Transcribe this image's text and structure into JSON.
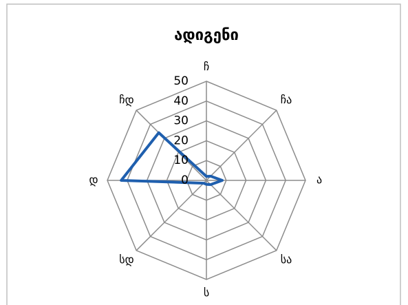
{
  "chart_data": {
    "type": "radar",
    "title": "ადიგენი",
    "categories": [
      "ჩ",
      "ჩა",
      "ა",
      "სა",
      "ს",
      "სდ",
      "დ",
      "ჩდ"
    ],
    "series": [
      {
        "name": "ადიგენი",
        "color": "#1f5fae",
        "values": [
          2,
          3,
          8,
          3,
          2,
          2,
          43,
          34
        ]
      }
    ],
    "ylim": [
      0,
      50
    ],
    "yticks": [
      0,
      10,
      20,
      30,
      40,
      50
    ],
    "grid": true
  }
}
